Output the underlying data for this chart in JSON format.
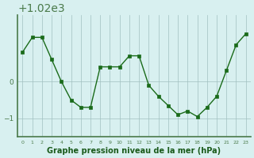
{
  "hours": [
    0,
    1,
    2,
    3,
    4,
    5,
    6,
    7,
    8,
    9,
    10,
    11,
    12,
    13,
    14,
    15,
    16,
    17,
    18,
    19,
    20,
    21,
    22,
    23
  ],
  "pressure": [
    1020.8,
    1021.2,
    1021.2,
    1020.6,
    1020.0,
    1019.5,
    1019.3,
    1019.3,
    1020.4,
    1020.4,
    1020.4,
    1020.7,
    1020.7,
    1019.9,
    1019.6,
    1019.35,
    1019.1,
    1019.2,
    1019.05,
    1019.3,
    1019.6,
    1020.3,
    1021.0,
    1021.3
  ],
  "line_color": "#1a6b1a",
  "marker_color": "#1a6b1a",
  "bg_color": "#d8f0f0",
  "grid_color": "#a0c0c0",
  "axis_color": "#4a7a4a",
  "xlabel": "Graphe pression niveau de la mer (hPa)",
  "xlabel_color": "#1a5a1a",
  "tick_label_color": "#4a7a4a",
  "ylim": [
    1018.5,
    1021.8
  ],
  "yticks": [
    1019,
    1020
  ],
  "title": ""
}
